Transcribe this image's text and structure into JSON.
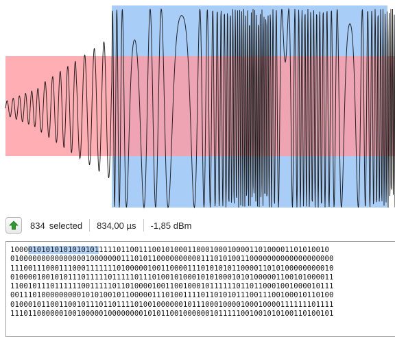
{
  "colors": {
    "background": "#ffffff",
    "band": "#ff9aa0",
    "selection": "#a8cdf7",
    "trace": "#222222",
    "bit_highlight": "#b5d3f6",
    "up_arrow": "#2e9a2e"
  },
  "status_bar": {
    "up_icon": "up-arrow-icon",
    "count": "834",
    "selected_label": "selected",
    "time": "834,00 µs",
    "power": "-1,85 dBm"
  },
  "bits": {
    "lines": [
      {
        "pre": "1000",
        "sel": "0101010101010101",
        "post": "1111011001110010100011000100010000110100001101010010"
      },
      {
        "pre": "",
        "sel": "",
        "post": "0100000000000000010000000111010110000000000111010100110000000000000000000"
      },
      {
        "pre": "",
        "sel": "",
        "post": "1110011100011100011111110100000100110000111010101011000011010100000000010"
      },
      {
        "pre": "",
        "sel": "",
        "post": "0100001001010111011111011111011101001010001010100010101000001100101000011"
      },
      {
        "pre": "",
        "sel": "",
        "post": "1100101110111111001111101101000010011001000101111110110110001001000010111"
      },
      {
        "pre": "",
        "sel": "",
        "post": "0011101000000000101010010110000011101001111011010101110011100100010110100"
      },
      {
        "pre": "",
        "sel": "",
        "post": "0100010110011001011101101111010010000001011100010000100010000111111101111"
      },
      {
        "pre": "",
        "sel": "",
        "post": "1110110000001001000001000000001010110010000001011111001001010100110100101"
      }
    ]
  }
}
